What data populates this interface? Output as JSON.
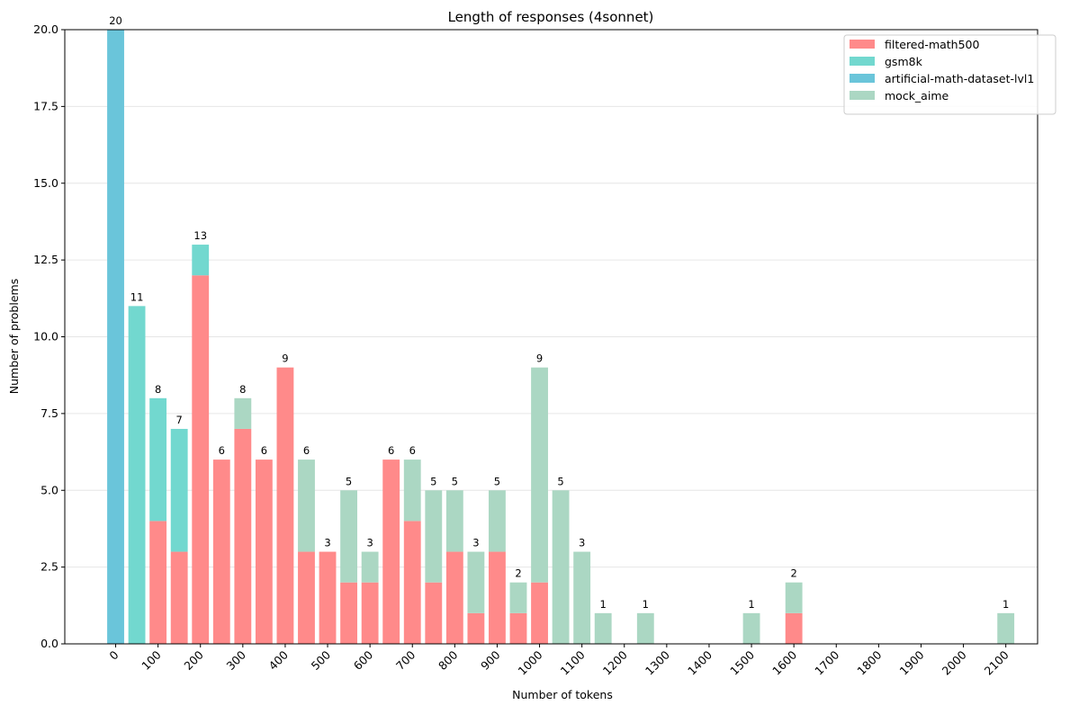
{
  "chart_data": {
    "type": "bar",
    "stacked": true,
    "title": "Length of responses (4sonnet)",
    "xlabel": "Number of tokens",
    "ylabel": "Number of problems",
    "ylim": [
      0,
      20
    ],
    "xlim": [
      -120,
      2175
    ],
    "bin_width": 50,
    "grid": "y",
    "legend_position": "top-right",
    "x": [
      0,
      50,
      100,
      150,
      200,
      250,
      300,
      350,
      400,
      450,
      500,
      550,
      600,
      650,
      700,
      750,
      800,
      850,
      900,
      950,
      1000,
      1050,
      1100,
      1150,
      1200,
      1250,
      1300,
      1350,
      1400,
      1450,
      1500,
      1550,
      1600,
      1650,
      1700,
      1750,
      1800,
      1850,
      1900,
      1950,
      2000,
      2050,
      2100
    ],
    "series": [
      {
        "name": "filtered-math500",
        "color": "#ff8a8a",
        "values": [
          0,
          0,
          4,
          3,
          12,
          6,
          7,
          6,
          9,
          3,
          3,
          2,
          2,
          6,
          4,
          2,
          3,
          1,
          3,
          1,
          2,
          0,
          0,
          0,
          0,
          0,
          0,
          0,
          0,
          0,
          0,
          0,
          1,
          0,
          0,
          0,
          0,
          0,
          0,
          0,
          0,
          0,
          0
        ]
      },
      {
        "name": "gsm8k",
        "color": "#72d8cf",
        "values": [
          0,
          11,
          4,
          4,
          1,
          0,
          0,
          0,
          0,
          0,
          0,
          0,
          0,
          0,
          0,
          0,
          0,
          0,
          0,
          0,
          0,
          0,
          0,
          0,
          0,
          0,
          0,
          0,
          0,
          0,
          0,
          0,
          0,
          0,
          0,
          0,
          0,
          0,
          0,
          0,
          0,
          0,
          0
        ]
      },
      {
        "name": "artificial-math-dataset-lvl1",
        "color": "#6ac5da",
        "values": [
          20,
          0,
          0,
          0,
          0,
          0,
          0,
          0,
          0,
          0,
          0,
          0,
          0,
          0,
          0,
          0,
          0,
          0,
          0,
          0,
          0,
          0,
          0,
          0,
          0,
          0,
          0,
          0,
          0,
          0,
          0,
          0,
          0,
          0,
          0,
          0,
          0,
          0,
          0,
          0,
          0,
          0,
          0
        ]
      },
      {
        "name": "mock_aime",
        "color": "#abd7c3",
        "values": [
          0,
          0,
          0,
          0,
          0,
          0,
          1,
          0,
          0,
          3,
          0,
          3,
          1,
          0,
          2,
          3,
          2,
          2,
          2,
          1,
          7,
          5,
          3,
          1,
          0,
          1,
          0,
          0,
          0,
          0,
          1,
          0,
          1,
          0,
          0,
          0,
          0,
          0,
          0,
          0,
          0,
          0,
          1
        ]
      }
    ],
    "xticks": [
      0,
      100,
      200,
      300,
      400,
      500,
      600,
      700,
      800,
      900,
      1000,
      1100,
      1200,
      1300,
      1400,
      1500,
      1600,
      1700,
      1800,
      1900,
      2000,
      2100
    ],
    "xtick_labels": [
      "0",
      "100",
      "200",
      "300",
      "400",
      "500",
      "600",
      "700",
      "800",
      "900",
      "1000",
      "1100",
      "1200",
      "1300",
      "1400",
      "1500",
      "1600",
      "1700",
      "1800",
      "1900",
      "2000",
      "2100"
    ],
    "yticks": [
      0,
      2.5,
      5,
      7.5,
      10,
      12.5,
      15,
      17.5,
      20
    ],
    "ytick_labels": [
      "0.0",
      "2.5",
      "5.0",
      "7.5",
      "10.0",
      "12.5",
      "15.0",
      "17.5",
      "20.0"
    ]
  }
}
